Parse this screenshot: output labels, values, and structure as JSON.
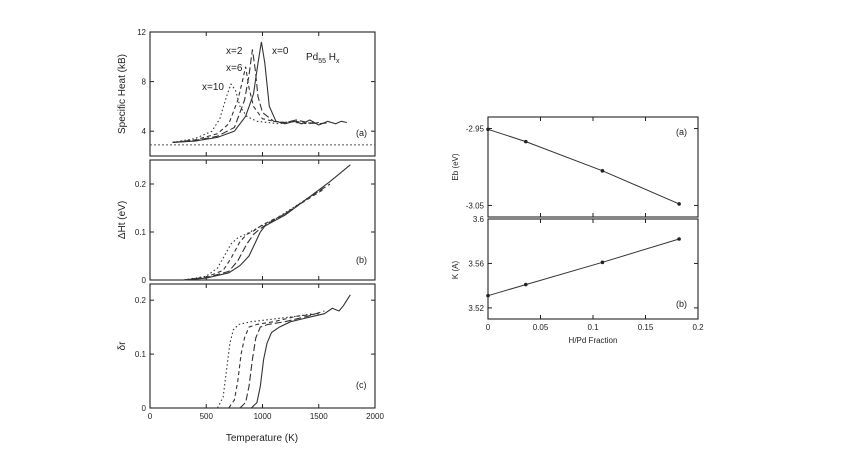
{
  "chart_data": [
    {
      "type": "line",
      "panel": "(a)",
      "ylabel": "Specific Heat (kB)",
      "formula": {
        "base": "Pd",
        "sub1": "55",
        "mid": " H",
        "sub2": "x"
      },
      "xlim": [
        0,
        2000
      ],
      "ylim": [
        2,
        12
      ],
      "yticks": [
        4,
        8,
        12
      ],
      "xticks": [
        0,
        500,
        1000,
        1500,
        2000
      ],
      "series": [
        {
          "name": "x=0",
          "style": "solid",
          "x": [
            200,
            400,
            600,
            750,
            850,
            920,
            960,
            990,
            1020,
            1060,
            1120,
            1200,
            1280,
            1350,
            1420,
            1500,
            1580,
            1650,
            1700,
            1750
          ],
          "y": [
            3.1,
            3.2,
            3.5,
            4.0,
            5.2,
            7.0,
            9.5,
            11.2,
            9.5,
            6.0,
            4.8,
            4.6,
            4.8,
            4.6,
            4.9,
            4.5,
            4.8,
            4.6,
            4.8,
            4.7
          ]
        },
        {
          "name": "x=2",
          "style": "dash1",
          "x": [
            200,
            400,
            600,
            750,
            840,
            880,
            910,
            935,
            960,
            1000,
            1100,
            1200,
            1300,
            1400,
            1500,
            1600
          ],
          "y": [
            3.1,
            3.25,
            3.6,
            4.3,
            6.5,
            8.5,
            10.6,
            9.0,
            6.8,
            5.5,
            4.8,
            4.7,
            4.9,
            4.7,
            4.6,
            4.7
          ]
        },
        {
          "name": "x=6",
          "style": "dash2",
          "x": [
            200,
            400,
            600,
            700,
            780,
            820,
            850,
            880,
            920,
            1000,
            1100,
            1200,
            1300,
            1400,
            1500
          ],
          "y": [
            3.1,
            3.3,
            3.8,
            4.6,
            6.5,
            8.0,
            9.2,
            7.5,
            6.0,
            5.0,
            4.8,
            4.7,
            4.8,
            4.6,
            4.7
          ]
        },
        {
          "name": "x=10",
          "style": "dash3",
          "x": [
            200,
            400,
            550,
            620,
            680,
            720,
            760,
            800,
            860,
            950,
            1050,
            1150,
            1250,
            1350,
            1450
          ],
          "y": [
            3.1,
            3.4,
            4.0,
            5.0,
            6.8,
            7.8,
            7.3,
            6.0,
            5.2,
            4.8,
            4.7,
            4.6,
            4.8,
            4.6,
            4.7
          ]
        }
      ],
      "reference_line": {
        "style": "dotted",
        "y": 2.9
      }
    },
    {
      "type": "line",
      "panel": "(b)",
      "ylabel": "ΔHt (eV)",
      "xlim": [
        0,
        2000
      ],
      "ylim": [
        0,
        0.25
      ],
      "yticks": [
        0,
        0.1,
        0.2
      ],
      "series": [
        {
          "name": "x=0",
          "style": "solid",
          "x": [
            300,
            500,
            700,
            800,
            880,
            940,
            980,
            1020,
            1080,
            1200,
            1400,
            1600,
            1780
          ],
          "y": [
            0.0,
            0.004,
            0.015,
            0.03,
            0.05,
            0.08,
            0.1,
            0.112,
            0.12,
            0.135,
            0.17,
            0.205,
            0.24
          ]
        },
        {
          "name": "x=2",
          "style": "dash1",
          "x": [
            300,
            500,
            700,
            780,
            860,
            920,
            970,
            1050,
            1200,
            1400,
            1600
          ],
          "y": [
            0.0,
            0.005,
            0.018,
            0.04,
            0.075,
            0.095,
            0.105,
            0.118,
            0.138,
            0.17,
            0.2
          ]
        },
        {
          "name": "x=6",
          "style": "dash2",
          "x": [
            300,
            500,
            650,
            720,
            800,
            860,
            920,
            1000,
            1200,
            1400,
            1550
          ],
          "y": [
            0.0,
            0.006,
            0.02,
            0.045,
            0.08,
            0.095,
            0.102,
            0.115,
            0.138,
            0.168,
            0.19
          ]
        },
        {
          "name": "x=10",
          "style": "dash3",
          "x": [
            300,
            500,
            600,
            660,
            720,
            780,
            850,
            950,
            1100,
            1300,
            1500
          ],
          "y": [
            0.0,
            0.008,
            0.025,
            0.05,
            0.075,
            0.088,
            0.095,
            0.108,
            0.125,
            0.155,
            0.185
          ]
        }
      ]
    },
    {
      "type": "line",
      "panel": "(c)",
      "ylabel": "δr",
      "xlabel": "Temperature (K)",
      "xlim": [
        0,
        2000
      ],
      "ylim": [
        0,
        0.23
      ],
      "yticks": [
        0,
        0.1,
        0.2
      ],
      "xticks": [
        0,
        500,
        1000,
        1500,
        2000
      ],
      "series": [
        {
          "name": "x=0",
          "style": "solid",
          "x": [
            900,
            950,
            980,
            1010,
            1040,
            1080,
            1150,
            1250,
            1350,
            1450,
            1550,
            1620,
            1680,
            1720,
            1780
          ],
          "y": [
            0.0,
            0.01,
            0.04,
            0.09,
            0.12,
            0.14,
            0.15,
            0.16,
            0.165,
            0.17,
            0.175,
            0.185,
            0.18,
            0.19,
            0.21
          ]
        },
        {
          "name": "x=2",
          "style": "dash1",
          "x": [
            800,
            850,
            880,
            910,
            940,
            980,
            1050,
            1200,
            1400,
            1550
          ],
          "y": [
            0.0,
            0.01,
            0.04,
            0.09,
            0.13,
            0.15,
            0.155,
            0.16,
            0.17,
            0.18
          ]
        },
        {
          "name": "x=6",
          "style": "dash2",
          "x": [
            700,
            750,
            780,
            810,
            840,
            880,
            950,
            1100,
            1300,
            1500
          ],
          "y": [
            0.0,
            0.015,
            0.05,
            0.1,
            0.13,
            0.15,
            0.155,
            0.16,
            0.17,
            0.175
          ]
        },
        {
          "name": "x=10",
          "style": "dash3",
          "x": [
            600,
            650,
            680,
            710,
            740,
            790,
            900,
            1100,
            1300,
            1450
          ],
          "y": [
            0.0,
            0.02,
            0.07,
            0.12,
            0.145,
            0.155,
            0.16,
            0.165,
            0.17,
            0.175
          ]
        }
      ]
    },
    {
      "type": "line",
      "panel": "(a)",
      "ylabel": "Eb (eV)",
      "xlim": [
        0,
        0.2
      ],
      "ylim": [
        -3.065,
        -2.935
      ],
      "yticks": [
        -2.95,
        -3.05
      ],
      "yticklabels": [
        "-2.95",
        "-3.05"
      ],
      "series": [
        {
          "style": "solid-markers",
          "x": [
            0,
            0.036,
            0.109,
            0.182
          ],
          "y": [
            -2.951,
            -2.967,
            -3.005,
            -3.048
          ]
        }
      ]
    },
    {
      "type": "line",
      "panel": "(b)",
      "ylabel": "K (A)",
      "xlabel": "H/Pd Fraction",
      "xlim": [
        0,
        0.2
      ],
      "ylim": [
        3.51,
        3.6
      ],
      "yticks": [
        3.52,
        3.56,
        3.6
      ],
      "yticklabels": [
        "3.52",
        "3.56",
        "3.6"
      ],
      "xticks": [
        0,
        0.05,
        0.1,
        0.15,
        0.2
      ],
      "xticklabels": [
        "0",
        "0.05",
        "0.1",
        "0.15",
        "0.2"
      ],
      "series": [
        {
          "style": "solid-markers",
          "x": [
            0,
            0.036,
            0.109,
            0.182
          ],
          "y": [
            3.531,
            3.541,
            3.561,
            3.582
          ]
        }
      ]
    }
  ]
}
